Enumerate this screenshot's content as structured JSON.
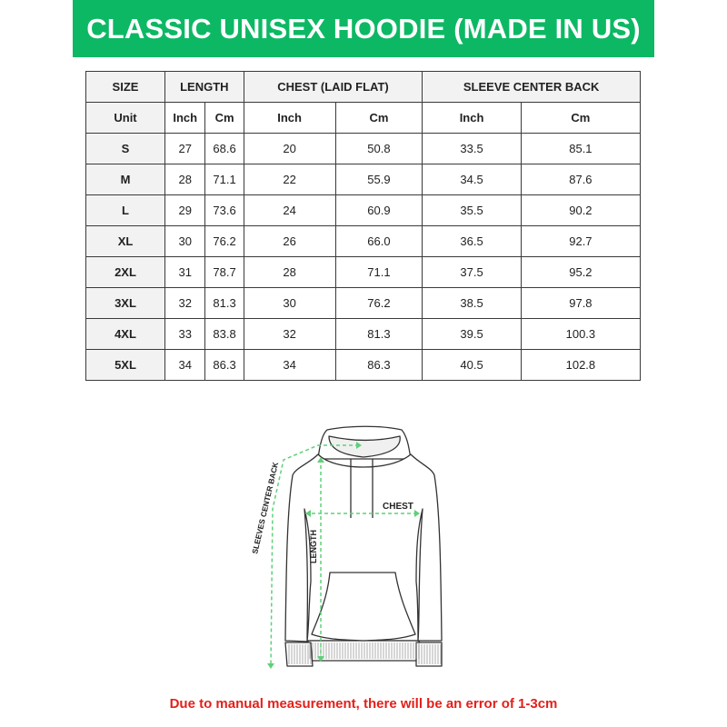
{
  "title": "CLASSIC UNISEX HOODIE (MADE IN US)",
  "table": {
    "group_headers": [
      "SIZE",
      "LENGTH",
      "CHEST (LAID FLAT)",
      "SLEEVE CENTER BACK"
    ],
    "unit_row": [
      "Unit",
      "Inch",
      "Cm",
      "Inch",
      "Cm",
      "Inch",
      "Cm"
    ],
    "rows": [
      [
        "S",
        "27",
        "68.6",
        "20",
        "50.8",
        "33.5",
        "85.1"
      ],
      [
        "M",
        "28",
        "71.1",
        "22",
        "55.9",
        "34.5",
        "87.6"
      ],
      [
        "L",
        "29",
        "73.6",
        "24",
        "60.9",
        "35.5",
        "90.2"
      ],
      [
        "XL",
        "30",
        "76.2",
        "26",
        "66.0",
        "36.5",
        "92.7"
      ],
      [
        "2XL",
        "31",
        "78.7",
        "28",
        "71.1",
        "37.5",
        "95.2"
      ],
      [
        "3XL",
        "32",
        "81.3",
        "30",
        "76.2",
        "38.5",
        "97.8"
      ],
      [
        "4XL",
        "33",
        "83.8",
        "32",
        "81.3",
        "39.5",
        "100.3"
      ],
      [
        "5XL",
        "34",
        "86.3",
        "34",
        "86.3",
        "40.5",
        "102.8"
      ]
    ]
  },
  "diagram": {
    "chest_label": "CHEST",
    "length_label": "LENGTH",
    "sleeve_label": "SLEEVES CENTER BACK"
  },
  "note": "Due to manual measurement, there will be an error of 1-3cm",
  "colors": {
    "banner": "#0db864",
    "note": "#e3201b",
    "measure_lines": "#5fd07a"
  }
}
